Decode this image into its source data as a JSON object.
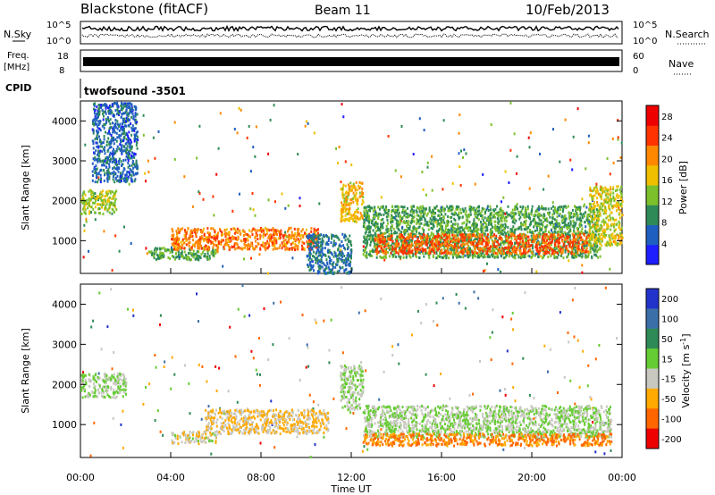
{
  "header": {
    "station": "Blackstone (fitACF)",
    "beam": "Beam 11",
    "date": "10/Feb/2013"
  },
  "noise_panel": {
    "left_label": "N.Sky",
    "right_label": "N.Search",
    "left_ticks": [
      "10^5",
      "10^0"
    ],
    "right_ticks": [
      "10^5",
      "10^0"
    ]
  },
  "freq_panel": {
    "left_label": "Freq.",
    "left_units": "[MHz]",
    "right_label": "Nave",
    "left_ticks": [
      "18",
      "8"
    ],
    "right_ticks": [
      "60",
      "0"
    ]
  },
  "cpid_panel": {
    "label": "CPID",
    "program": "twofsound -3501"
  },
  "x_axis": {
    "label": "Time UT",
    "ticks": [
      "00:00",
      "04:00",
      "08:00",
      "12:00",
      "16:00",
      "20:00",
      "00:00"
    ]
  },
  "colors": {
    "power_scale": [
      "#1e1eff",
      "#1f5fbf",
      "#2e8b57",
      "#7cc02c",
      "#f0c000",
      "#ff8800",
      "#ff3300",
      "#ee0000"
    ],
    "velocity_scale": [
      "#2233cc",
      "#3a6fa8",
      "#2e8b57",
      "#66cc33",
      "#c8c8c0",
      "#ffaa00",
      "#ff6600",
      "#ee0000"
    ]
  },
  "chart_data": [
    {
      "type": "heatmap",
      "title": "Power",
      "ylabel": "Slant Range [km]",
      "xlabel": "",
      "ylim": [
        180,
        4500
      ],
      "yticks": [
        "1000",
        "2000",
        "3000",
        "4000"
      ],
      "xlim_hours": [
        0,
        24
      ],
      "colorbar": {
        "label": "Power [dB]",
        "ticks": [
          "4",
          "8",
          "12",
          "16",
          "20",
          "24",
          "28"
        ],
        "range": [
          0,
          30
        ]
      },
      "regions": [
        {
          "t": [
            0.0,
            1.6
          ],
          "range": [
            1700,
            2300
          ],
          "value": 14
        },
        {
          "t": [
            0.5,
            2.5
          ],
          "range": [
            2500,
            4500
          ],
          "value": 5
        },
        {
          "t": [
            3.0,
            6.0
          ],
          "range": [
            550,
            850
          ],
          "value": 10
        },
        {
          "t": [
            4.0,
            10.5
          ],
          "range": [
            800,
            1350
          ],
          "value": 22
        },
        {
          "t": [
            10.0,
            12.0
          ],
          "range": [
            200,
            1200
          ],
          "value": 6
        },
        {
          "t": [
            11.5,
            12.5
          ],
          "range": [
            1500,
            2500
          ],
          "value": 18
        },
        {
          "t": [
            12.5,
            23.0
          ],
          "range": [
            600,
            1900
          ],
          "value": 10
        },
        {
          "t": [
            13.0,
            22.5
          ],
          "range": [
            700,
            1200
          ],
          "value": 24
        },
        {
          "t": [
            22.5,
            24.0
          ],
          "range": [
            900,
            2400
          ],
          "value": 16
        }
      ]
    },
    {
      "type": "heatmap",
      "title": "Velocity",
      "ylabel": "Slant Range [km]",
      "xlabel": "Time UT",
      "ylim": [
        180,
        4500
      ],
      "yticks": [
        "1000",
        "2000",
        "3000",
        "4000"
      ],
      "xlim_hours": [
        0,
        24
      ],
      "colorbar": {
        "label": "Velocity [m s^-1]",
        "ticks": [
          "200",
          "100",
          "50",
          "15",
          "-15",
          "-50",
          "-100",
          "-200"
        ],
        "range": [
          -250,
          250
        ]
      },
      "regions": [
        {
          "t": [
            0.0,
            2.0
          ],
          "range": [
            1700,
            2300
          ],
          "value": 0
        },
        {
          "t": [
            4.0,
            6.0
          ],
          "range": [
            550,
            850
          ],
          "value": -50
        },
        {
          "t": [
            5.5,
            11.0
          ],
          "range": [
            800,
            1400
          ],
          "value": -70
        },
        {
          "t": [
            11.5,
            12.5
          ],
          "range": [
            1400,
            2500
          ],
          "value": 0
        },
        {
          "t": [
            12.5,
            23.5
          ],
          "range": [
            700,
            1500
          ],
          "value": 0
        },
        {
          "t": [
            12.5,
            23.5
          ],
          "range": [
            500,
            800
          ],
          "value": -150
        }
      ]
    }
  ]
}
